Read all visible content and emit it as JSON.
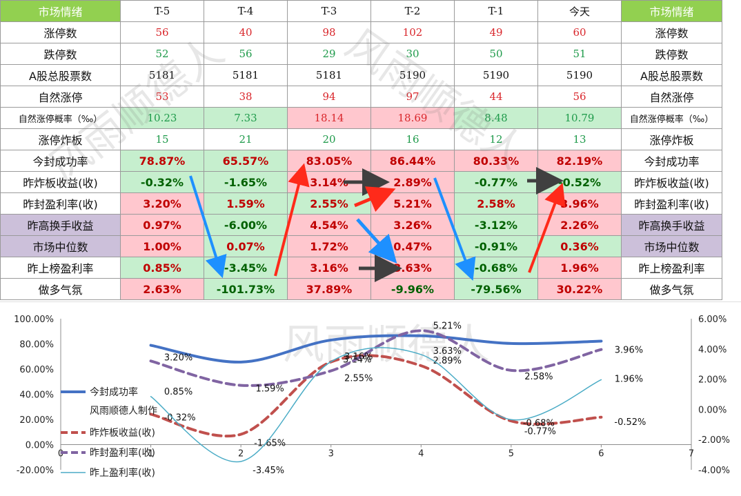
{
  "table": {
    "header": [
      "市场情绪",
      "T-5",
      "T-4",
      "T-3",
      "T-2",
      "T-1",
      "今天",
      "市场情绪"
    ],
    "rows": [
      {
        "label": "涨停数",
        "kind": "int",
        "color": "red",
        "values": [
          "56",
          "40",
          "98",
          "102",
          "49",
          "60"
        ]
      },
      {
        "label": "跌停数",
        "kind": "int",
        "color": "green",
        "values": [
          "52",
          "56",
          "29",
          "30",
          "50",
          "51"
        ]
      },
      {
        "label": "A股总股票数",
        "kind": "int",
        "color": "black",
        "values": [
          "5181",
          "5181",
          "5181",
          "5190",
          "5190",
          "5190"
        ]
      },
      {
        "label": "自然涨停",
        "kind": "int",
        "color": "red",
        "values": [
          "53",
          "38",
          "94",
          "97",
          "44",
          "56"
        ]
      },
      {
        "label": "自然涨停概率（‰）",
        "kind": "int",
        "small": true,
        "values": [
          "10.23",
          "7.33",
          "18.14",
          "18.69",
          "8.48",
          "10.79"
        ],
        "bg": [
          "g",
          "g",
          "p",
          "p",
          "g",
          "g"
        ],
        "fg": [
          "green",
          "green",
          "red",
          "red",
          "green",
          "green"
        ]
      },
      {
        "label": "涨停炸板",
        "kind": "int",
        "color": "green",
        "values": [
          "15",
          "21",
          "20",
          "16",
          "12",
          "13"
        ]
      },
      {
        "label": "今封成功率",
        "kind": "pct",
        "values": [
          "78.87%",
          "65.57%",
          "83.05%",
          "86.44%",
          "80.33%",
          "82.19%"
        ],
        "bg": [
          "g",
          "g",
          "p",
          "p",
          "p",
          "p"
        ]
      },
      {
        "label": "昨炸板收益(收)",
        "kind": "pct",
        "values": [
          "-0.32%",
          "-1.65%",
          "3.14%",
          "2.89%",
          "-0.77%",
          "-0.52%"
        ],
        "bg": [
          "g",
          "g",
          "p",
          "p",
          "g",
          "g"
        ]
      },
      {
        "label": "昨封盈利率(收)",
        "kind": "pct",
        "values": [
          "3.20%",
          "1.59%",
          "2.55%",
          "5.21%",
          "2.58%",
          "3.96%"
        ],
        "bg": [
          "p",
          "g",
          "g",
          "p",
          "g",
          "p"
        ]
      },
      {
        "label": "昨高换手收益",
        "kind": "pct",
        "purple": true,
        "values": [
          "0.97%",
          "-6.00%",
          "4.54%",
          "3.26%",
          "-3.12%",
          "2.26%"
        ],
        "bg": [
          "p",
          "g",
          "p",
          "p",
          "g",
          "p"
        ]
      },
      {
        "label": "市场中位数",
        "kind": "pct",
        "purple": true,
        "values": [
          "1.00%",
          "0.07%",
          "1.72%",
          "0.47%",
          "-0.91%",
          "0.36%"
        ],
        "bg": [
          "p",
          "g",
          "p",
          "p",
          "g",
          "g"
        ]
      },
      {
        "label": "昨上榜盈利率",
        "kind": "pct",
        "values": [
          "0.85%",
          "-3.45%",
          "3.16%",
          "3.63%",
          "-0.68%",
          "1.96%"
        ],
        "bg": [
          "g",
          "g",
          "p",
          "p",
          "g",
          "p"
        ]
      },
      {
        "label": "做多气氛",
        "kind": "pct",
        "values": [
          "2.63%",
          "-101.73%",
          "37.89%",
          "-9.96%",
          "-79.56%",
          "30.22%"
        ],
        "bg": [
          "p",
          "g",
          "p",
          "p",
          "g",
          "p"
        ]
      }
    ]
  },
  "watermark": "风雨顺德人",
  "chart_data": {
    "type": "line",
    "x": [
      1,
      2,
      3,
      4,
      5,
      6
    ],
    "xlim": [
      0,
      7
    ],
    "xticks": [
      "0",
      "1",
      "2",
      "3",
      "4",
      "5",
      "6",
      "7"
    ],
    "left_axis": {
      "ylim": [
        -20,
        100
      ],
      "ticks": [
        "100.00%",
        "80.00%",
        "60.00%",
        "40.00%",
        "20.00%",
        "0.00%",
        "-20.00%"
      ]
    },
    "right_axis": {
      "ylim": [
        -4,
        6
      ],
      "ticks": [
        "6.00%",
        "4.00%",
        "2.00%",
        "0.00%",
        "-2.00%",
        "-4.00%"
      ]
    },
    "series": [
      {
        "name": "今封成功率",
        "axis": "left",
        "color": "#4472c4",
        "style": "solid",
        "width": 4,
        "values": [
          78.87,
          65.57,
          83.05,
          86.44,
          80.33,
          82.19
        ],
        "labels": [
          "",
          "",
          "",
          "",
          "",
          ""
        ]
      },
      {
        "name": "昨炸板收益(收)",
        "axis": "right",
        "color": "#c0504d",
        "style": "dash",
        "width": 4,
        "values": [
          -0.32,
          -1.65,
          3.14,
          2.89,
          -0.77,
          -0.52
        ],
        "labels": [
          "-0.32%",
          "-1.65%",
          "3.14%",
          "2.89%",
          "-0.77%",
          "-0.52%"
        ]
      },
      {
        "name": "昨封盈利率(收)",
        "axis": "right",
        "color": "#8064a2",
        "style": "dash",
        "width": 4,
        "values": [
          3.2,
          1.59,
          2.55,
          5.21,
          2.58,
          3.96
        ],
        "labels": [
          "3.20%",
          "1.59%",
          "2.55%",
          "5.21%",
          "2.58%",
          "3.96%"
        ]
      },
      {
        "name": "昨上盈利率(收)",
        "axis": "right",
        "color": "#4bacc6",
        "style": "solid",
        "width": 1.5,
        "values": [
          0.85,
          -3.45,
          3.16,
          3.63,
          -0.68,
          1.96
        ],
        "labels": [
          "0.85%",
          "-3.45%",
          "3.16%",
          "3.63%",
          "-0.68%",
          "1.96%"
        ]
      }
    ],
    "legend_note": "风雨顺德人制作",
    "legend_position": "left"
  },
  "colors": {
    "header_bg": "#92d050",
    "purple_bg": "#ccc0da",
    "green_bg": "#c6efce",
    "pink_bg": "#ffc7ce",
    "arrow_blue": "#1e90ff",
    "arrow_red": "#ff2a1a",
    "arrow_dark": "#404040"
  }
}
